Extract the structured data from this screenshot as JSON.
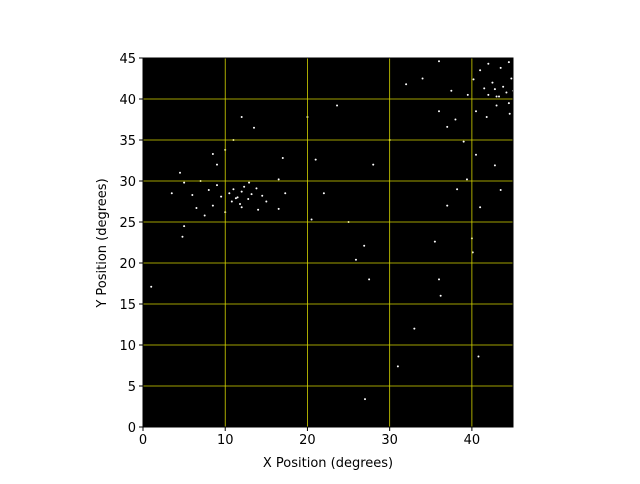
{
  "chart_data": {
    "type": "scatter",
    "xlabel": "X Position (degrees)",
    "ylabel": "Y Position (degrees)",
    "xlim": [
      0,
      45
    ],
    "ylim": [
      0,
      45
    ],
    "xticks": [
      0,
      10,
      20,
      30,
      40
    ],
    "yticks": [
      0,
      5,
      10,
      15,
      20,
      25,
      30,
      35,
      40,
      45
    ],
    "grid": true,
    "grid_color": "#d4d400",
    "facecolor": "#000000",
    "color": "#ffffff",
    "x": [
      10.5,
      11,
      11.5,
      12,
      12.3,
      12.8,
      11.8,
      13.2,
      10.8,
      9.5,
      13.8,
      14.5,
      9,
      8,
      7,
      6,
      5,
      4.5,
      3.5,
      6.5,
      8.5,
      15,
      16.5,
      17.3,
      14,
      12,
      10,
      7.5,
      5,
      4.8,
      9,
      8.5,
      10,
      11,
      13.5,
      12,
      17,
      21,
      42,
      42.8,
      43.3,
      43.8,
      44.2,
      42.5,
      41.5,
      44.5,
      43,
      44.8,
      41,
      43.5,
      42,
      44.5,
      40.2,
      39.5,
      40.5,
      41.8,
      44.6,
      36,
      34,
      32,
      37.5,
      38,
      36,
      37,
      39,
      40.5,
      42.8,
      43.5,
      39.4,
      38.2,
      41,
      40,
      37,
      35.5,
      36,
      36.2,
      33,
      31,
      40.8,
      27,
      26.9,
      27.5,
      25.9,
      28,
      30,
      23.6,
      22,
      25,
      20.5,
      1,
      11.3,
      12.9,
      40.1,
      43,
      45,
      20,
      16.5
    ],
    "y": [
      28.5,
      29,
      28,
      28.7,
      29.3,
      27.8,
      27.2,
      28.4,
      27.5,
      28.1,
      29.1,
      28.2,
      29.5,
      28.9,
      30,
      28.3,
      29.8,
      31,
      28.5,
      26.7,
      27,
      27.5,
      30.2,
      28.5,
      26.5,
      26.8,
      26.2,
      25.8,
      24.5,
      23.2,
      32,
      33.3,
      33.8,
      35,
      36.5,
      37.8,
      32.8,
      32.6,
      40.5,
      41.2,
      40.3,
      41.5,
      40.8,
      42,
      41.3,
      39.5,
      39.2,
      42.5,
      43.5,
      43.8,
      44.3,
      44.5,
      42.4,
      40.5,
      38.5,
      37.8,
      38.2,
      44.6,
      42.5,
      41.8,
      41,
      37.5,
      38.5,
      36.6,
      34.8,
      33.2,
      31.9,
      28.9,
      30.2,
      29,
      26.8,
      23,
      27,
      22.6,
      18,
      16,
      12,
      7.4,
      8.6,
      3.4,
      22.1,
      18,
      20.4,
      32,
      35,
      39.2,
      28.5,
      25,
      25.3,
      17.1,
      27.9,
      29.8,
      21.3,
      40.3,
      41,
      37.8,
      26.6
    ]
  }
}
